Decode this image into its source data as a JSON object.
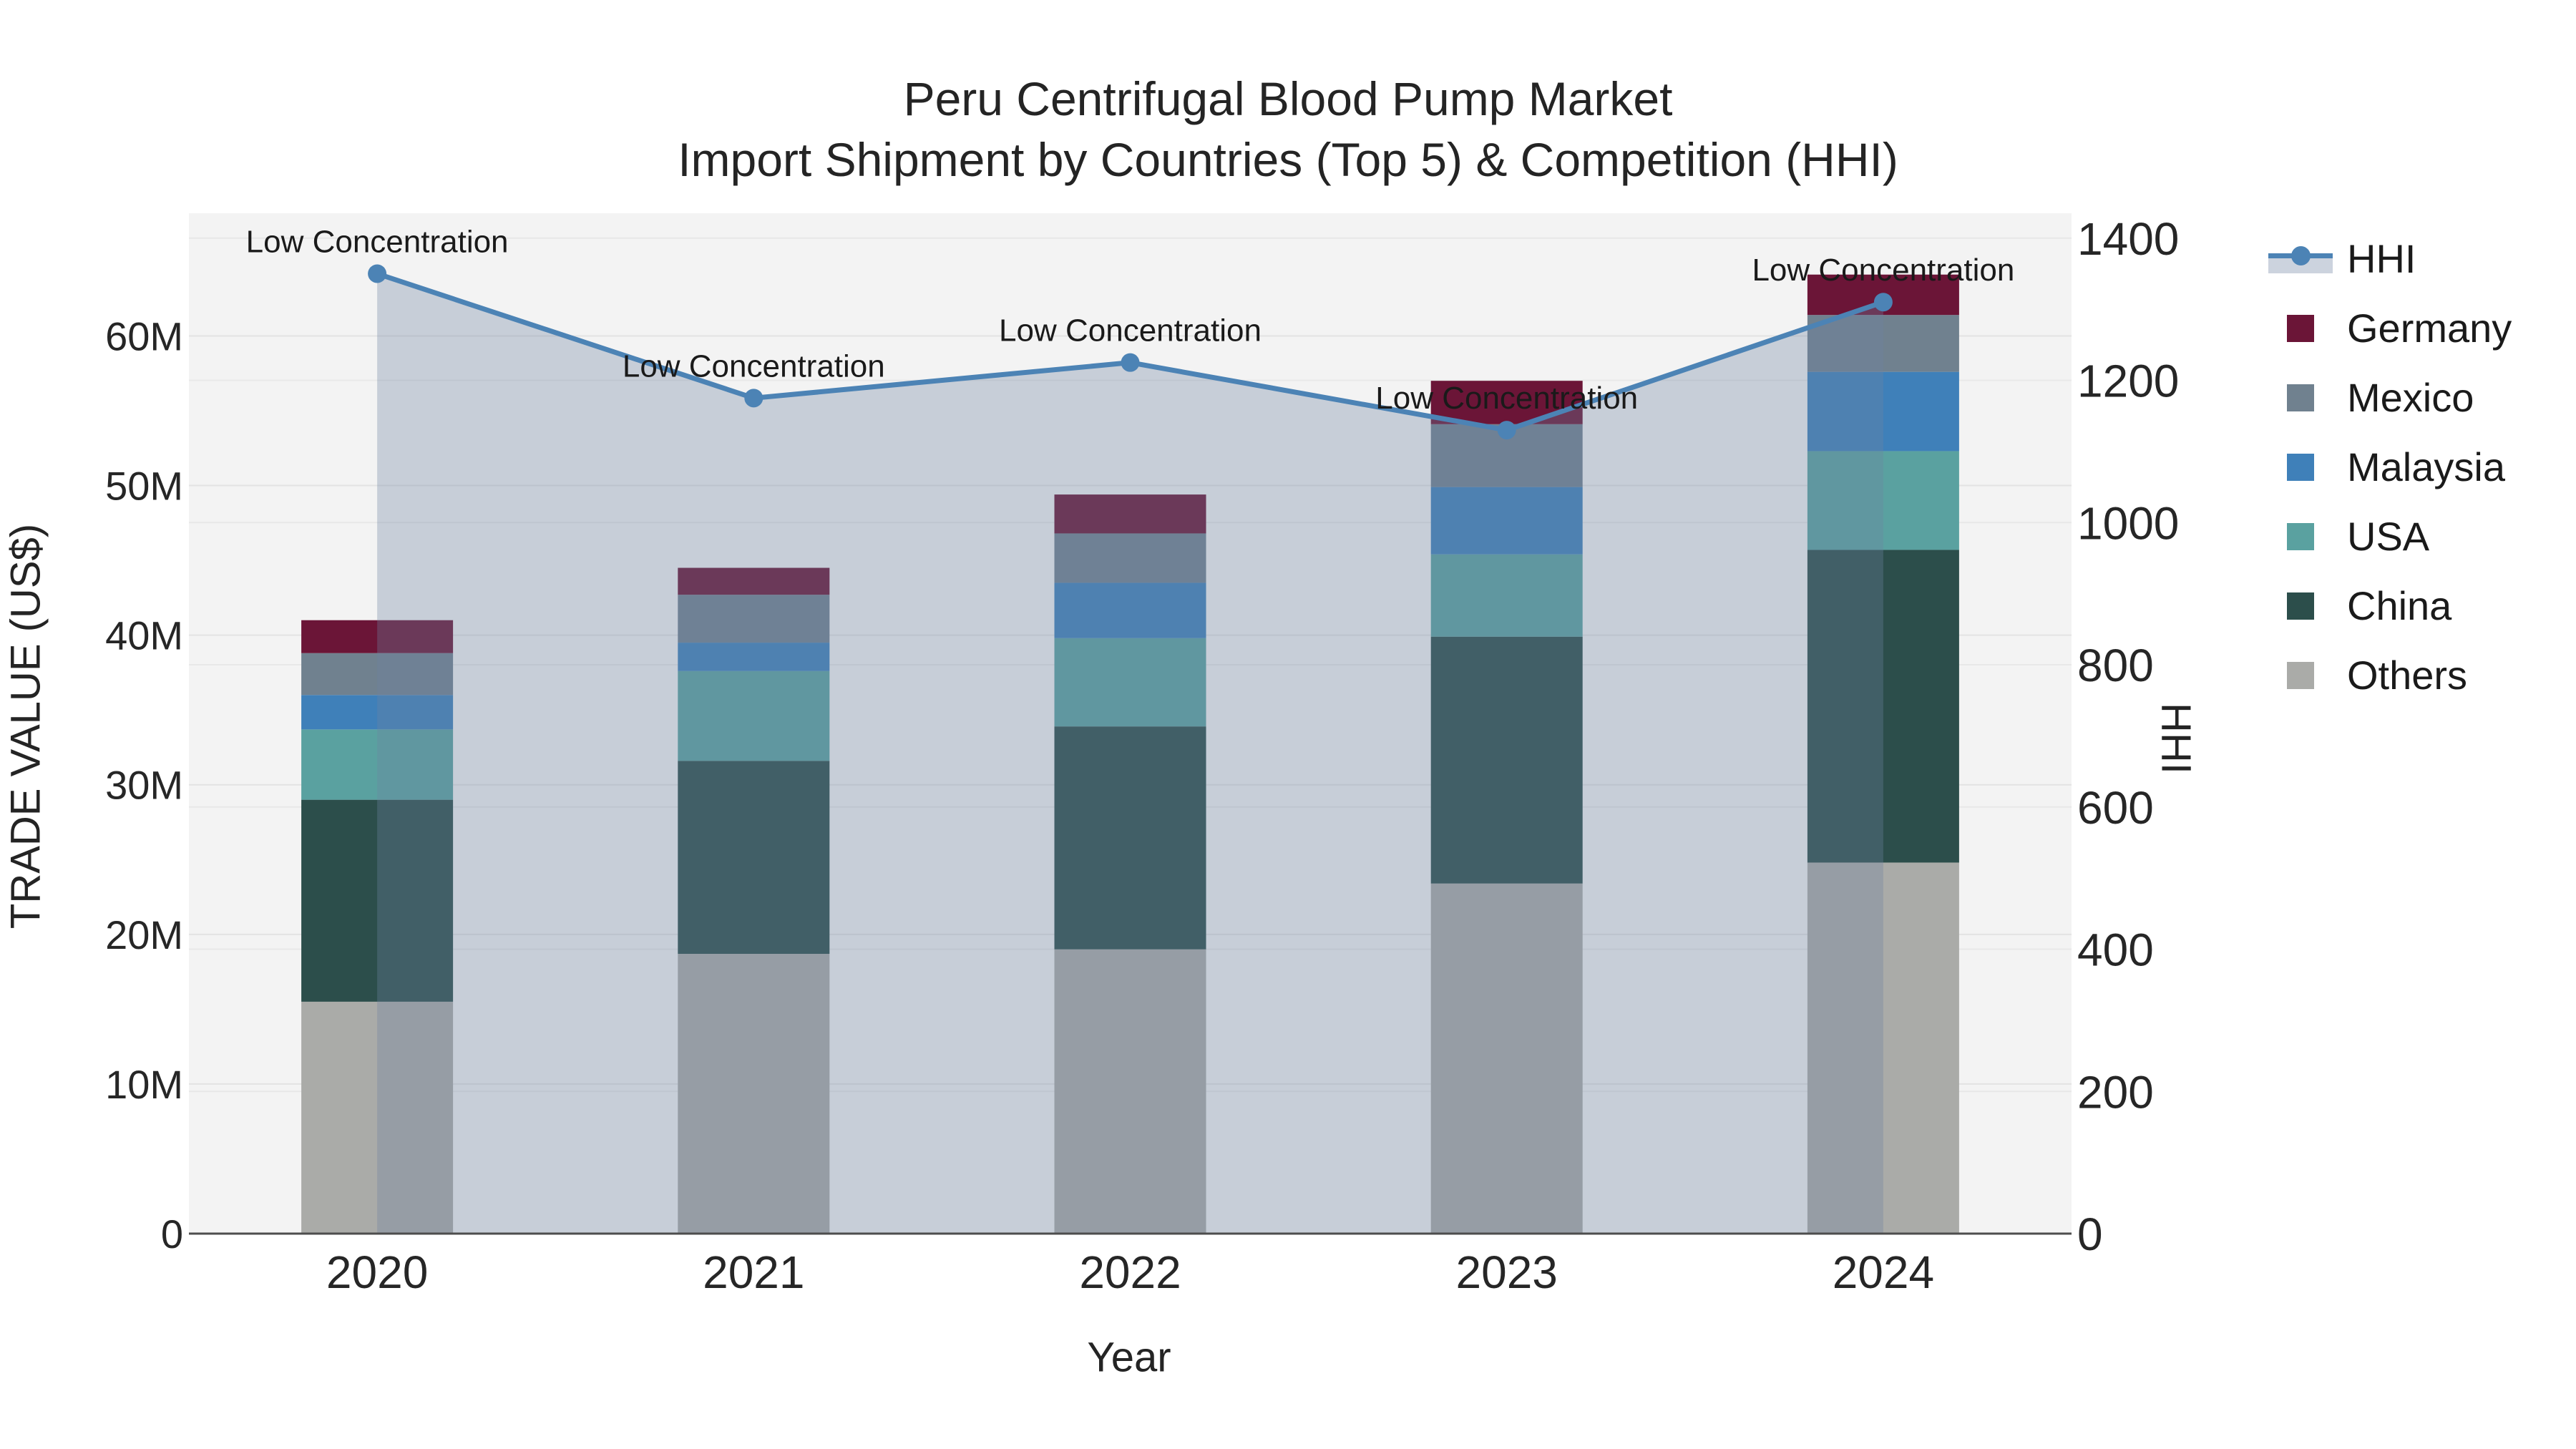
{
  "chart_data": {
    "type": "bar",
    "subtype": "stacked-bars-with-line-overlay-and-area-fill",
    "title_line1": "Peru Centrifugal Blood Pump Market",
    "title_line2": "Import Shipment by Countries (Top 5) & Competition (HHI)",
    "xlabel": "Year",
    "ylabel_left": "TRADE VALUE (US$)",
    "ylabel_right": "HHI",
    "categories": [
      "2020",
      "2021",
      "2022",
      "2023",
      "2024"
    ],
    "unit": "million US$",
    "bar_series_bottom_to_top": [
      {
        "name": "Others",
        "color": "#aaaba8",
        "values_musd": [
          15.5,
          18.7,
          19.0,
          23.4,
          24.8
        ]
      },
      {
        "name": "China",
        "color": "#2c4e4b",
        "values_musd": [
          13.5,
          12.9,
          14.9,
          16.5,
          20.9
        ]
      },
      {
        "name": "USA",
        "color": "#5aa1a0",
        "values_musd": [
          4.7,
          6.0,
          5.9,
          5.5,
          6.6
        ]
      },
      {
        "name": "Malaysia",
        "color": "#3f80b9",
        "values_musd": [
          2.3,
          1.9,
          3.7,
          4.5,
          5.3
        ]
      },
      {
        "name": "Mexico",
        "color": "#70818f",
        "values_musd": [
          2.8,
          3.2,
          3.3,
          4.2,
          3.8
        ]
      },
      {
        "name": "Germany",
        "color": "#6b1537",
        "values_musd": [
          2.2,
          1.8,
          2.6,
          2.9,
          2.7
        ]
      }
    ],
    "bar_totals_musd": [
      41.0,
      44.5,
      49.4,
      57.0,
      64.1
    ],
    "line_series": {
      "name": "HHI",
      "color": "#4c83b5",
      "area_fill_color": "rgba(110,130,160,0.33)",
      "values": [
        1350,
        1175,
        1225,
        1130,
        1310
      ],
      "point_annotations": [
        "Low Concentration",
        "Low Concentration",
        "Low Concentration",
        "Low Concentration",
        "Low Concentration"
      ]
    },
    "y_left_ticks": {
      "labels": [
        "0",
        "10M",
        "20M",
        "30M",
        "40M",
        "50M",
        "60M"
      ],
      "values_musd": [
        0,
        10,
        20,
        30,
        40,
        50,
        60
      ]
    },
    "y_right_ticks": {
      "labels": [
        "0",
        "200",
        "400",
        "600",
        "800",
        "1000",
        "1200",
        "1400"
      ],
      "values": [
        0,
        200,
        400,
        600,
        800,
        1000,
        1200,
        1400
      ]
    },
    "ylim_left_musd": [
      0,
      68.2
    ],
    "ylim_right": [
      0,
      1435
    ],
    "grid": true,
    "plot_background": "#f3f3f3",
    "legend_position": "right"
  },
  "legend": {
    "items": [
      {
        "label": "HHI",
        "color": "#4c83b5",
        "symbol": "line-marker-area",
        "band_color": "#ccd3de"
      },
      {
        "label": "Germany",
        "color": "#6b1537",
        "symbol": "square"
      },
      {
        "label": "Mexico",
        "color": "#70818f",
        "symbol": "square"
      },
      {
        "label": "Malaysia",
        "color": "#3f80b9",
        "symbol": "square"
      },
      {
        "label": "USA",
        "color": "#5aa1a0",
        "symbol": "square"
      },
      {
        "label": "China",
        "color": "#2c4e4b",
        "symbol": "square"
      },
      {
        "label": "Others",
        "color": "#aaaba8",
        "symbol": "square"
      }
    ]
  }
}
